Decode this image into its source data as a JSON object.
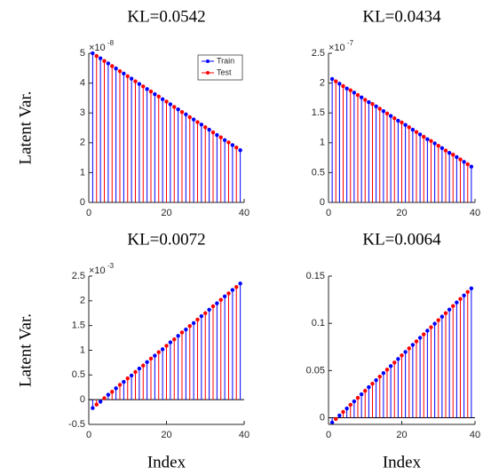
{
  "chart_data": [
    {
      "type": "stem",
      "title": "KL=0.0542",
      "ylabel": "Latent Var.",
      "xlim": [
        0,
        40
      ],
      "xticks": [
        0,
        20,
        40
      ],
      "ylim": [
        0,
        5
      ],
      "yticks": [
        0,
        1,
        2,
        3,
        4,
        5
      ],
      "y_multiplier": {
        "base": "×10",
        "exponent": "-8"
      },
      "legend": "upper right",
      "series": [
        {
          "name": "Train",
          "color": "#0000ff",
          "x": [
            1,
            3,
            5,
            7,
            9,
            11,
            13,
            15,
            17,
            19,
            21,
            23,
            25,
            27,
            29,
            31,
            33,
            35,
            37,
            39
          ],
          "values": [
            5.0,
            4.83,
            4.66,
            4.49,
            4.32,
            4.15,
            3.97,
            3.8,
            3.63,
            3.46,
            3.29,
            3.12,
            2.95,
            2.78,
            2.61,
            2.44,
            2.26,
            2.09,
            1.92,
            1.75
          ]
        },
        {
          "name": "Test",
          "color": "#ff0000",
          "x": [
            2,
            4,
            6,
            8,
            10,
            12,
            14,
            16,
            18,
            20,
            22,
            24,
            26,
            28,
            30,
            32,
            34,
            36,
            38
          ],
          "values": [
            4.91,
            4.74,
            4.57,
            4.4,
            4.23,
            4.06,
            3.89,
            3.72,
            3.55,
            3.38,
            3.2,
            3.03,
            2.86,
            2.69,
            2.52,
            2.35,
            2.18,
            2.01,
            1.84
          ]
        }
      ]
    },
    {
      "type": "stem",
      "title": "KL=0.0434",
      "xlim": [
        0,
        40
      ],
      "xticks": [
        0,
        20,
        40
      ],
      "ylim": [
        0,
        2.5
      ],
      "yticks": [
        0,
        0.5,
        1,
        1.5,
        2,
        2.5
      ],
      "y_multiplier": {
        "base": "×10",
        "exponent": "-7"
      },
      "series": [
        {
          "name": "Train",
          "color": "#0000ff",
          "x": [
            1,
            3,
            5,
            7,
            9,
            11,
            13,
            15,
            17,
            19,
            21,
            23,
            25,
            27,
            29,
            31,
            33,
            35,
            37,
            39
          ],
          "values": [
            2.07,
            1.99,
            1.91,
            1.84,
            1.76,
            1.68,
            1.61,
            1.53,
            1.45,
            1.37,
            1.3,
            1.22,
            1.14,
            1.06,
            0.99,
            0.91,
            0.83,
            0.76,
            0.68,
            0.6
          ]
        },
        {
          "name": "Test",
          "color": "#ff0000",
          "x": [
            2,
            4,
            6,
            8,
            10,
            12,
            14,
            16,
            18,
            20,
            22,
            24,
            26,
            28,
            30,
            32,
            34,
            36,
            38
          ],
          "values": [
            2.03,
            1.95,
            1.88,
            1.8,
            1.72,
            1.65,
            1.57,
            1.49,
            1.41,
            1.34,
            1.26,
            1.18,
            1.1,
            1.03,
            0.95,
            0.87,
            0.8,
            0.72,
            0.64
          ]
        }
      ]
    },
    {
      "type": "stem",
      "title": "KL=0.0072",
      "ylabel": "Latent Var.",
      "xlabel": "Index",
      "xlim": [
        0,
        40
      ],
      "xticks": [
        0,
        20,
        40
      ],
      "ylim": [
        -0.5,
        2.5
      ],
      "yticks": [
        -0.5,
        0,
        0.5,
        1,
        1.5,
        2,
        2.5
      ],
      "y_multiplier": {
        "base": "×10",
        "exponent": "-3"
      },
      "series": [
        {
          "name": "Train",
          "color": "#0000ff",
          "x": [
            1,
            3,
            5,
            7,
            9,
            11,
            13,
            15,
            17,
            19,
            21,
            23,
            25,
            27,
            29,
            31,
            33,
            35,
            37,
            39
          ],
          "values": [
            -0.17,
            -0.04,
            0.1,
            0.23,
            0.36,
            0.49,
            0.63,
            0.76,
            0.89,
            1.02,
            1.16,
            1.29,
            1.42,
            1.55,
            1.69,
            1.82,
            1.95,
            2.09,
            2.22,
            2.35
          ]
        },
        {
          "name": "Test",
          "color": "#ff0000",
          "x": [
            2,
            4,
            6,
            8,
            10,
            12,
            14,
            16,
            18,
            20,
            22,
            24,
            26,
            28,
            30,
            32,
            34,
            36,
            38
          ],
          "values": [
            -0.1,
            0.03,
            0.16,
            0.3,
            0.43,
            0.56,
            0.69,
            0.83,
            0.96,
            1.09,
            1.22,
            1.36,
            1.49,
            1.62,
            1.75,
            1.89,
            2.02,
            2.15,
            2.28
          ]
        }
      ]
    },
    {
      "type": "stem",
      "title": "KL=0.0064",
      "xlabel": "Index",
      "xlim": [
        0,
        40
      ],
      "xticks": [
        0,
        20,
        40
      ],
      "ylim": [
        -0.007,
        0.15
      ],
      "yticks": [
        0,
        0.05,
        0.1,
        0.15
      ],
      "series": [
        {
          "name": "Train",
          "color": "#0000ff",
          "x": [
            1,
            3,
            5,
            7,
            9,
            11,
            13,
            15,
            17,
            19,
            21,
            23,
            25,
            27,
            29,
            31,
            33,
            35,
            37,
            39
          ],
          "values": [
            -0.005,
            0.0025,
            0.0099,
            0.0174,
            0.0249,
            0.0324,
            0.0398,
            0.0473,
            0.0548,
            0.0623,
            0.0697,
            0.0772,
            0.0847,
            0.0922,
            0.0996,
            0.1071,
            0.1146,
            0.1221,
            0.1295,
            0.137
          ]
        },
        {
          "name": "Test",
          "color": "#ff0000",
          "x": [
            2,
            4,
            6,
            8,
            10,
            12,
            14,
            16,
            18,
            20,
            22,
            24,
            26,
            28,
            30,
            32,
            34,
            36,
            38
          ],
          "values": [
            -0.0013,
            0.0062,
            0.0137,
            0.0211,
            0.0286,
            0.0361,
            0.0436,
            0.051,
            0.0585,
            0.066,
            0.0735,
            0.0809,
            0.0884,
            0.0959,
            0.1034,
            0.1108,
            0.1183,
            0.1258,
            0.1333
          ]
        }
      ]
    }
  ]
}
